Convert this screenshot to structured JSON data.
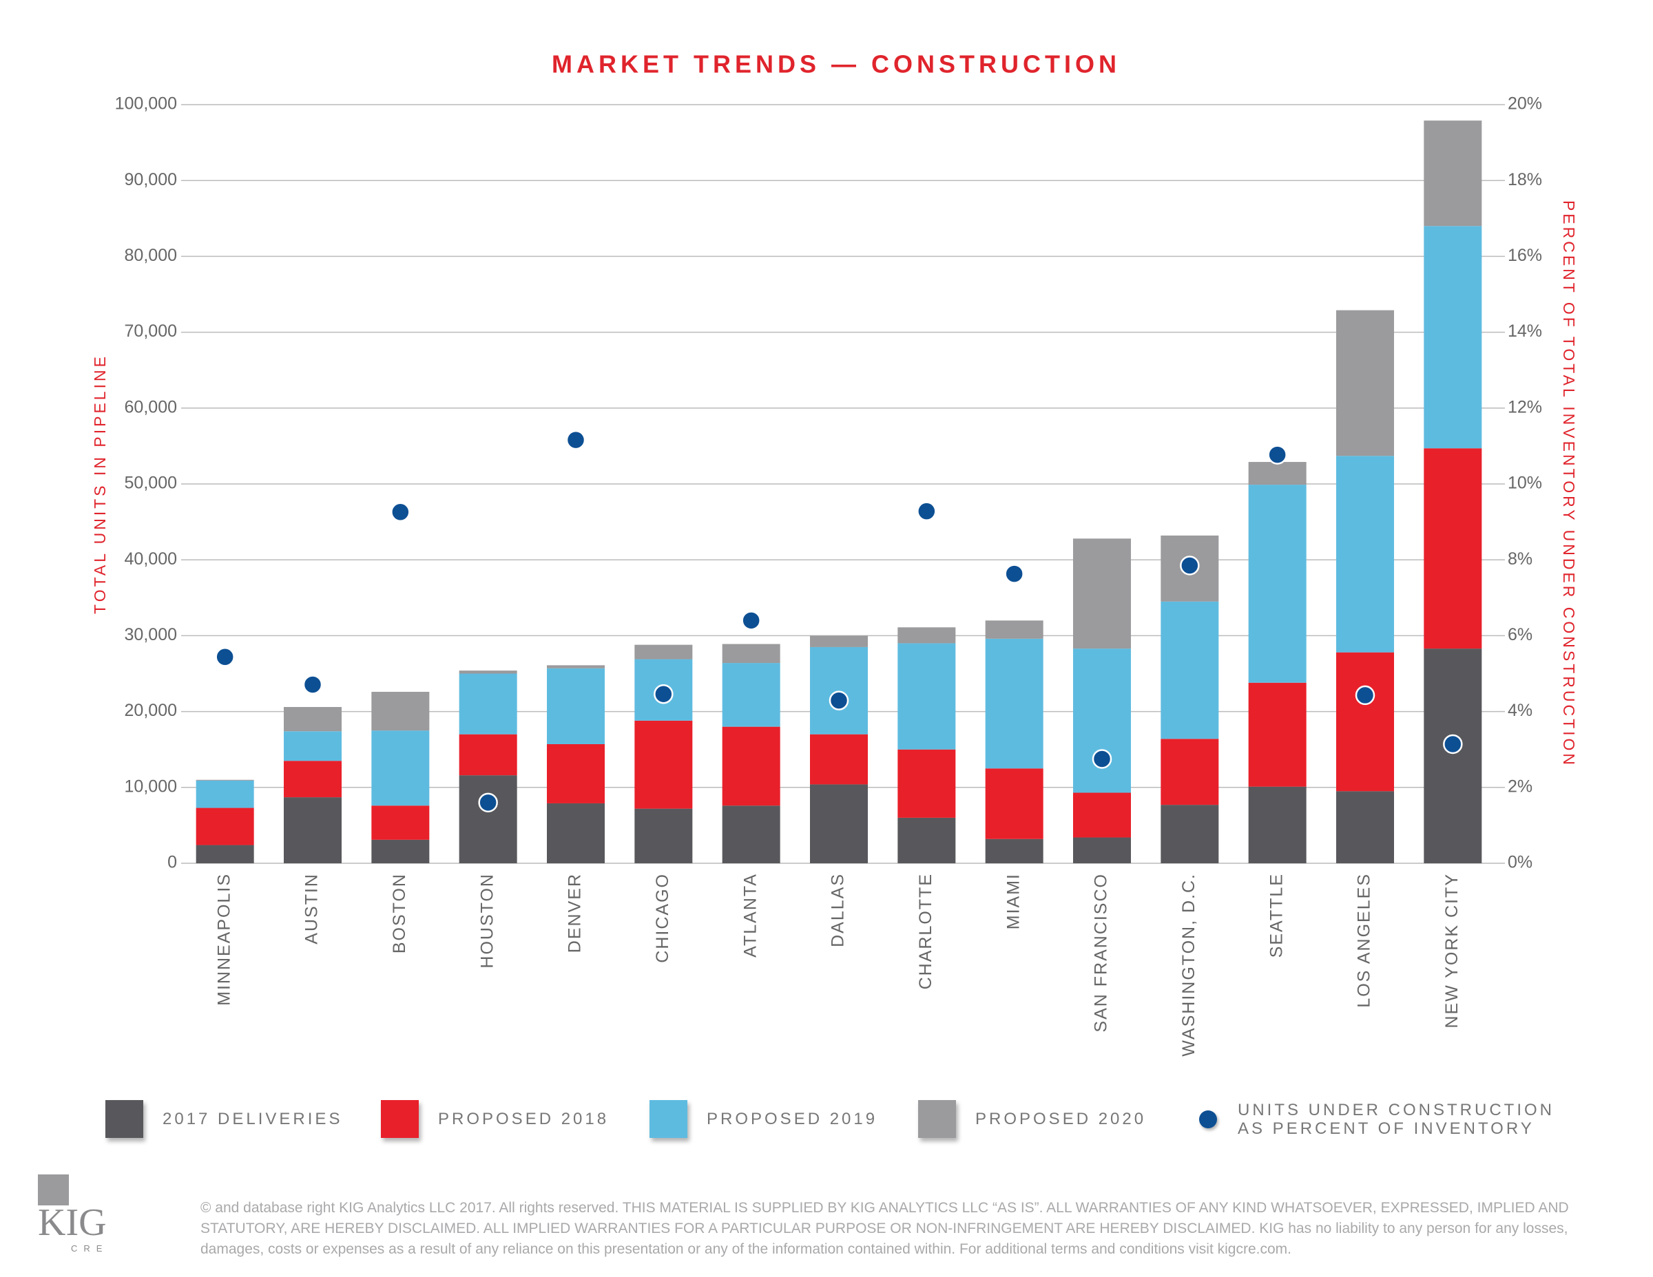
{
  "chart_data": {
    "type": "bar",
    "stacked": true,
    "title": "MARKET TRENDS — CONSTRUCTION",
    "y_label": "TOTAL UNITS IN PIPELINE",
    "y2_label": "PERCENT OF TOTAL INVENTORY UNDER CONSTRUCTION",
    "categories": [
      "MINNEAPOLIS",
      "AUSTIN",
      "BOSTON",
      "HOUSTON",
      "DENVER",
      "CHICAGO",
      "ATLANTA",
      "DALLAS",
      "CHARLOTTE",
      "MIAMI",
      "SAN FRANCISCO",
      "WASHINGTON, D.C.",
      "SEATTLE",
      "LOS ANGELES",
      "NEW YORK CITY"
    ],
    "series": [
      {
        "name": "2017 DELIVERIES",
        "color": "#58585c",
        "values": [
          2400,
          8700,
          3100,
          11600,
          7900,
          7200,
          7600,
          10400,
          6000,
          3200,
          3400,
          7700,
          10100,
          9500,
          28300
        ]
      },
      {
        "name": "PROPOSED 2018",
        "color": "#e8202a",
        "values": [
          4900,
          4800,
          4500,
          5400,
          7800,
          11600,
          10400,
          6600,
          9000,
          9300,
          5900,
          8700,
          13700,
          18300,
          26400
        ]
      },
      {
        "name": "PROPOSED 2019",
        "color": "#5ebbe0",
        "values": [
          3600,
          3900,
          9900,
          8000,
          10000,
          8100,
          8400,
          11500,
          14000,
          17100,
          19000,
          18100,
          26100,
          25900,
          29300
        ]
      },
      {
        "name": "PROPOSED 2020",
        "color": "#9b9a9c",
        "values": [
          100,
          3200,
          5100,
          400,
          400,
          1900,
          2500,
          1500,
          2100,
          2400,
          14500,
          8700,
          3000,
          19200,
          13900
        ]
      },
      {
        "name": "UNITS UNDER CONSTRUCTION AS PERCENT OF INVENTORY",
        "color": "#0d4f93",
        "type": "scatter",
        "axis": "y2",
        "values": [
          5.44,
          4.71,
          9.26,
          1.6,
          11.16,
          4.46,
          6.4,
          4.29,
          9.28,
          7.63,
          2.75,
          7.85,
          10.77,
          4.43,
          3.14
        ]
      }
    ],
    "ylim": [
      0,
      100000
    ],
    "yticks": [
      0,
      {
        "value": 10000,
        "label": "10,000"
      },
      {
        "value": 20000,
        "label": "20,000"
      },
      {
        "value": 30000,
        "label": "30,000"
      },
      {
        "value": 40000,
        "label": "40,000"
      },
      {
        "value": 50000,
        "label": "50,000"
      },
      {
        "value": 60000,
        "label": "60,000"
      },
      {
        "value": 70000,
        "label": "70,000"
      },
      {
        "value": 80000,
        "label": "80,000"
      },
      {
        "value": 90000,
        "label": "90,000"
      },
      {
        "value": 100000,
        "label": "100,000"
      }
    ],
    "y2lim": [
      0,
      20
    ],
    "y2ticks": [
      {
        "value": 0,
        "label": "0%"
      },
      {
        "value": 2,
        "label": "2%"
      },
      {
        "value": 4,
        "label": "4%"
      },
      {
        "value": 6,
        "label": "6%"
      },
      {
        "value": 8,
        "label": "8%"
      },
      {
        "value": 10,
        "label": "10%"
      },
      {
        "value": 12,
        "label": "12%"
      },
      {
        "value": 14,
        "label": "14%"
      },
      {
        "value": 16,
        "label": "16%"
      },
      {
        "value": 18,
        "label": "18%"
      },
      {
        "value": 20,
        "label": "20%"
      }
    ],
    "grid": true
  },
  "footer": {
    "logo": "KIG",
    "logo_sub": "CRE",
    "disclaimer": "© and database right KIG Analytics LLC 2017. All rights reserved. THIS MATERIAL IS SUPPLIED BY KIG ANALYTICS LLC “AS IS”. ALL WARRANTIES OF ANY KIND WHATSOEVER, EXPRESSED, IMPLIED AND STATUTORY, ARE HEREBY DISCLAIMED. ALL IMPLIED WARRANTIES FOR A PARTICULAR PURPOSE OR NON-INFRINGEMENT ARE HEREBY DISCLAIMED. KIG has no liability to any person for any losses, damages, costs or expenses as a result of any reliance on this presentation or any of the information contained within. For additional terms and conditions visit kigcre.com."
  }
}
